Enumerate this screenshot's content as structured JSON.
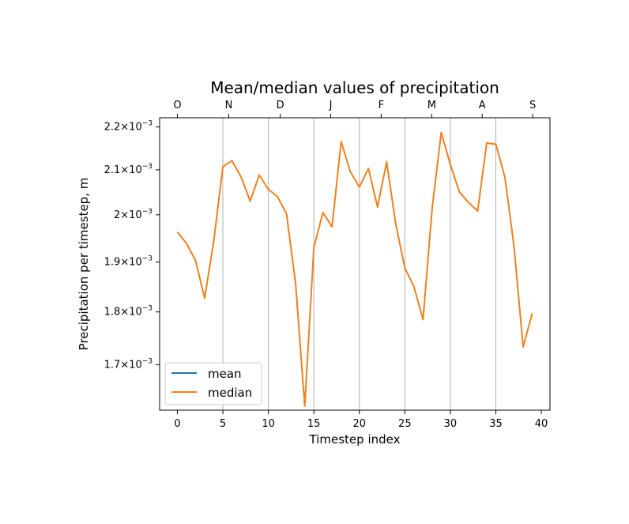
{
  "chart_data": {
    "type": "line",
    "title": "Mean/median values of precipitation",
    "xlabel": "Timestep index",
    "ylabel": "Precipitation per timestep, m",
    "xlim": [
      -1.95,
      40.95
    ],
    "ylim": [
      0.001618,
      0.002222
    ],
    "yscale": "log",
    "grid": "vertical at month ticks",
    "legend_position": "lower-left",
    "x_ticks": [
      0,
      5,
      10,
      15,
      20,
      25,
      30,
      35,
      40
    ],
    "x_tick_labels": [
      "0",
      "5",
      "10",
      "15",
      "20",
      "25",
      "30",
      "35",
      "40"
    ],
    "y_ticks": [
      0.0017,
      0.0018,
      0.0019,
      0.002,
      0.0021,
      0.0022
    ],
    "y_tick_mantissas": [
      "1.7",
      "1.8",
      "1.9",
      "2",
      "2.1",
      "2.2"
    ],
    "y_tick_base": "10",
    "y_tick_exponent": "−3",
    "top_axis": {
      "positions": [
        0,
        5.65,
        11.3,
        16.85,
        22.4,
        27.95,
        33.5,
        39.05
      ],
      "labels": [
        "O",
        "N",
        "D",
        "J",
        "F",
        "M",
        "A",
        "S"
      ]
    },
    "grid_x": [
      5,
      10,
      15,
      20,
      25,
      30,
      35
    ],
    "x": [
      0,
      1,
      2,
      3,
      4,
      5,
      6,
      7,
      8,
      9,
      10,
      11,
      12,
      13,
      14,
      15,
      16,
      17,
      18,
      19,
      20,
      21,
      22,
      23,
      24,
      25,
      26,
      27,
      28,
      29,
      30,
      31,
      32,
      33,
      34,
      35,
      36,
      37,
      38,
      39
    ],
    "series": [
      {
        "name": "mean",
        "color": "#1f77b4",
        "values": [
          0.001963,
          0.001939,
          0.001903,
          0.001827,
          0.001944,
          0.002107,
          0.002121,
          0.002084,
          0.00203,
          0.002088,
          0.002056,
          0.00204,
          0.002002,
          0.001855,
          0.001625,
          0.00193,
          0.002005,
          0.001974,
          0.002165,
          0.002096,
          0.002061,
          0.002103,
          0.002017,
          0.002118,
          0.00198,
          0.001888,
          0.00185,
          0.001785,
          0.002014,
          0.002187,
          0.002112,
          0.00205,
          0.002027,
          0.002008,
          0.002162,
          0.002159,
          0.002083,
          0.001932,
          0.001733,
          0.001797
        ]
      },
      {
        "name": "median",
        "color": "#ff7f0e",
        "values": [
          0.001963,
          0.001939,
          0.001903,
          0.001827,
          0.001944,
          0.002107,
          0.002121,
          0.002084,
          0.00203,
          0.002088,
          0.002056,
          0.00204,
          0.002002,
          0.001855,
          0.001625,
          0.00193,
          0.002005,
          0.001974,
          0.002165,
          0.002096,
          0.002061,
          0.002103,
          0.002017,
          0.002118,
          0.00198,
          0.001888,
          0.00185,
          0.001785,
          0.002014,
          0.002187,
          0.002112,
          0.00205,
          0.002027,
          0.002008,
          0.002162,
          0.002159,
          0.002083,
          0.001932,
          0.001733,
          0.001797
        ]
      }
    ]
  }
}
